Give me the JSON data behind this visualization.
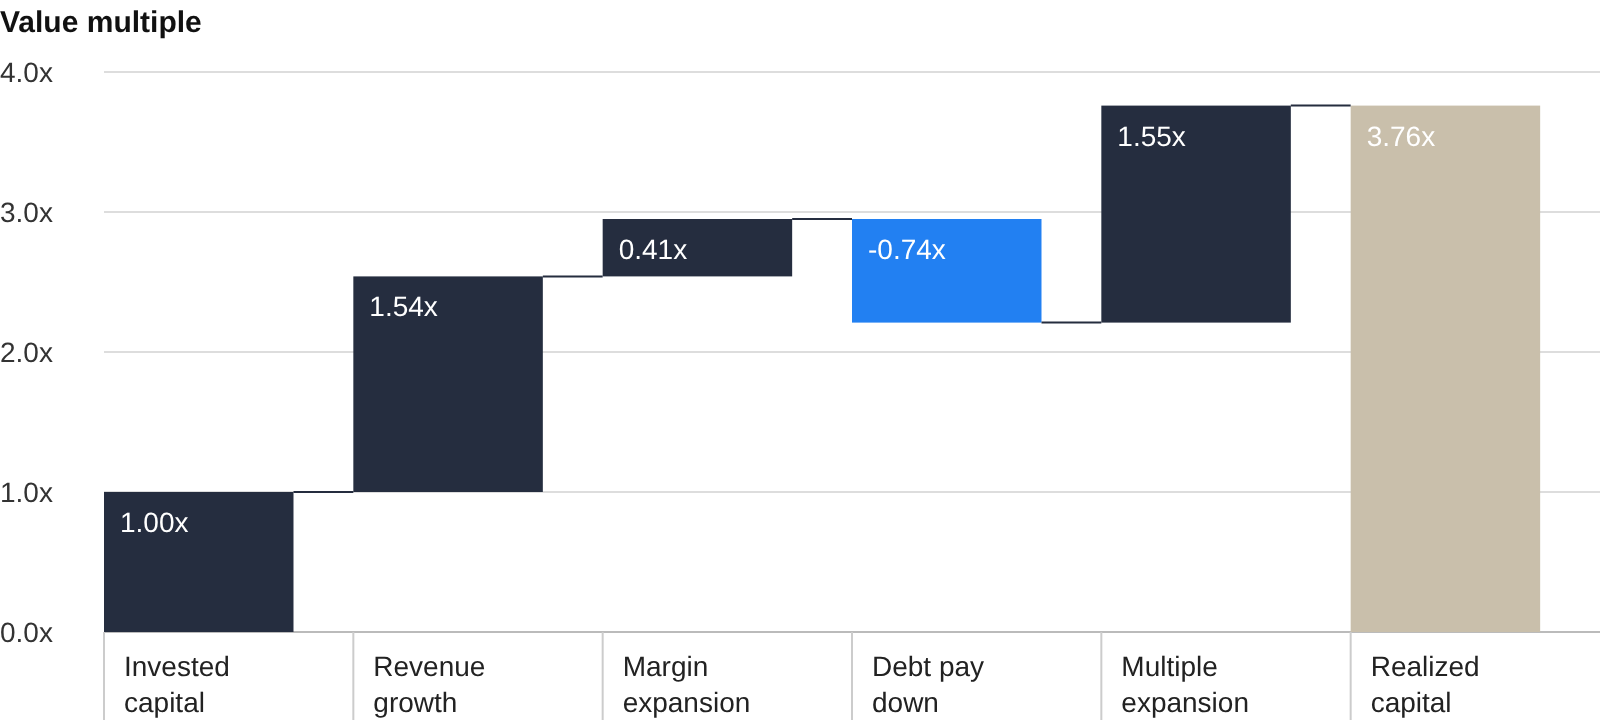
{
  "chart_data": {
    "type": "bar",
    "title": "Value multiple",
    "categories": [
      "Invested capital",
      "Revenue growth",
      "Margin expansion",
      "Debt pay down",
      "Multiple expansion",
      "Realized capital"
    ],
    "values": [
      1.0,
      1.54,
      0.41,
      -0.74,
      1.55,
      3.76
    ],
    "base": [
      0,
      1.0,
      2.54,
      2.95,
      2.21,
      0
    ],
    "colors": [
      "#252d3f",
      "#252d3f",
      "#252d3f",
      "#2280f2",
      "#252d3f",
      "#c9bfab"
    ],
    "value_labels": [
      "1.00x",
      "1.54x",
      "0.41x",
      "-0.74x",
      "1.55x",
      "3.76x"
    ],
    "ylim": [
      0,
      4
    ],
    "yticks": [
      {
        "value": 0,
        "label": "0.0x"
      },
      {
        "value": 1,
        "label": "1.0x"
      },
      {
        "value": 2,
        "label": "2.0x"
      },
      {
        "value": 3,
        "label": "3.0x"
      },
      {
        "value": 4,
        "label": "4.0x"
      }
    ],
    "grid": "y"
  }
}
